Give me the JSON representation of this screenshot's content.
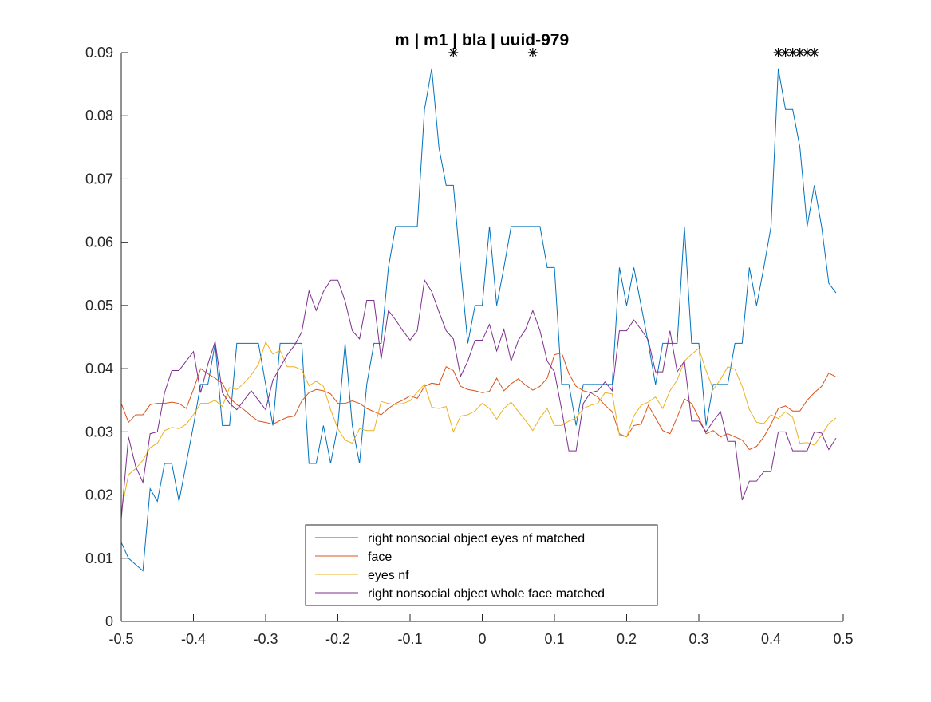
{
  "chart_data": {
    "type": "line",
    "title": "m | m1 | bla | uuid-979",
    "xlabel": "",
    "ylabel": "",
    "xlim": [
      -0.5,
      0.5
    ],
    "ylim": [
      0,
      0.09
    ],
    "grid": false,
    "legend_placement": "bottom-center",
    "x_ticks": [
      -0.5,
      -0.4,
      -0.3,
      -0.2,
      -0.1,
      0,
      0.1,
      0.2,
      0.3,
      0.4,
      0.5
    ],
    "x_tick_labels": [
      "-0.5",
      "-0.4",
      "-0.3",
      "-0.2",
      "-0.1",
      "0",
      "0.1",
      "0.2",
      "0.3",
      "0.4",
      "0.5"
    ],
    "y_ticks": [
      0,
      0.01,
      0.02,
      0.03,
      0.04,
      0.05,
      0.06,
      0.07,
      0.08,
      0.09
    ],
    "y_tick_labels": [
      "0",
      "0.01",
      "0.02",
      "0.03",
      "0.04",
      "0.05",
      "0.06",
      "0.07",
      "0.08",
      "0.09"
    ],
    "x": [
      -0.5,
      -0.49,
      -0.48,
      -0.47,
      -0.46,
      -0.45,
      -0.44,
      -0.43,
      -0.42,
      -0.41,
      -0.4,
      -0.39,
      -0.38,
      -0.37,
      -0.36,
      -0.35,
      -0.34,
      -0.33,
      -0.32,
      -0.31,
      -0.3,
      -0.29,
      -0.28,
      -0.27,
      -0.26,
      -0.25,
      -0.24,
      -0.23,
      -0.22,
      -0.21,
      -0.2,
      -0.19,
      -0.18,
      -0.17,
      -0.16,
      -0.15,
      -0.14,
      -0.13,
      -0.12,
      -0.11,
      -0.1,
      -0.09,
      -0.08,
      -0.07,
      -0.06,
      -0.05,
      -0.04,
      -0.03,
      -0.02,
      -0.01,
      0,
      0.01,
      0.02,
      0.03,
      0.04,
      0.05,
      0.06,
      0.07,
      0.08,
      0.09,
      0.1,
      0.11,
      0.12,
      0.13,
      0.14,
      0.15,
      0.16,
      0.17,
      0.18,
      0.19,
      0.2,
      0.21,
      0.22,
      0.23,
      0.24,
      0.25,
      0.26,
      0.27,
      0.28,
      0.29,
      0.3,
      0.31,
      0.32,
      0.33,
      0.34,
      0.35,
      0.36,
      0.37,
      0.38,
      0.39,
      0.4,
      0.41,
      0.42,
      0.43,
      0.44,
      0.45,
      0.46,
      0.47,
      0.48,
      0.49
    ],
    "series": [
      {
        "name": "right nonsocial object eyes nf matched",
        "color": "#0072BD",
        "values": [
          0.0125,
          0.01,
          0.009,
          0.008,
          0.021,
          0.019,
          0.025,
          0.025,
          0.019,
          0.025,
          0.031,
          0.0375,
          0.0375,
          0.044,
          0.031,
          0.031,
          0.044,
          0.044,
          0.044,
          0.044,
          0.0375,
          0.031,
          0.044,
          0.044,
          0.044,
          0.044,
          0.025,
          0.025,
          0.031,
          0.025,
          0.031,
          0.044,
          0.031,
          0.025,
          0.0375,
          0.044,
          0.044,
          0.056,
          0.0625,
          0.0625,
          0.0625,
          0.0625,
          0.081,
          0.0875,
          0.075,
          0.069,
          0.069,
          0.056,
          0.044,
          0.05,
          0.05,
          0.0625,
          0.05,
          0.056,
          0.0625,
          0.0625,
          0.0625,
          0.0625,
          0.0625,
          0.056,
          0.056,
          0.0375,
          0.0375,
          0.031,
          0.0375,
          0.0375,
          0.0375,
          0.0375,
          0.0375,
          0.056,
          0.05,
          0.056,
          0.05,
          0.044,
          0.0375,
          0.044,
          0.044,
          0.044,
          0.0625,
          0.044,
          0.044,
          0.031,
          0.0375,
          0.0375,
          0.0375,
          0.044,
          0.044,
          0.056,
          0.05,
          0.056,
          0.0625,
          0.0875,
          0.081,
          0.081,
          0.075,
          0.0625,
          0.069,
          0.0625,
          0.0535,
          0.052
        ]
      },
      {
        "name": "face",
        "color": "#D95319",
        "values": [
          0.0345,
          0.0315,
          0.0327,
          0.0327,
          0.0343,
          0.0345,
          0.0345,
          0.0347,
          0.0345,
          0.0337,
          0.0367,
          0.04,
          0.0392,
          0.0385,
          0.0377,
          0.0354,
          0.0343,
          0.0335,
          0.0325,
          0.0317,
          0.0315,
          0.0312,
          0.0318,
          0.0323,
          0.0325,
          0.0349,
          0.0362,
          0.0367,
          0.0365,
          0.036,
          0.0345,
          0.0345,
          0.0349,
          0.0345,
          0.0337,
          0.0332,
          0.0327,
          0.0337,
          0.0345,
          0.035,
          0.0357,
          0.0353,
          0.0372,
          0.0377,
          0.0375,
          0.0403,
          0.0397,
          0.0372,
          0.0367,
          0.0365,
          0.0362,
          0.0364,
          0.0385,
          0.0365,
          0.0376,
          0.0384,
          0.0374,
          0.0366,
          0.0372,
          0.0385,
          0.0422,
          0.0425,
          0.0392,
          0.0372,
          0.0365,
          0.0362,
          0.0355,
          0.0342,
          0.0332,
          0.0297,
          0.0292,
          0.031,
          0.0312,
          0.0342,
          0.0322,
          0.0302,
          0.0297,
          0.0323,
          0.0352,
          0.0345,
          0.0322,
          0.0297,
          0.0302,
          0.0292,
          0.0297,
          0.0292,
          0.0287,
          0.0272,
          0.0277,
          0.0292,
          0.0312,
          0.0337,
          0.0341,
          0.0333,
          0.0333,
          0.035,
          0.0362,
          0.0372,
          0.0393,
          0.0387
        ]
      },
      {
        "name": "eyes nf",
        "color": "#EDB120",
        "values": [
          0.0175,
          0.0232,
          0.0242,
          0.0255,
          0.0275,
          0.0282,
          0.0302,
          0.0307,
          0.0305,
          0.0312,
          0.0327,
          0.0345,
          0.0345,
          0.035,
          0.034,
          0.037,
          0.0367,
          0.0377,
          0.039,
          0.0407,
          0.0442,
          0.0423,
          0.0429,
          0.0403,
          0.0403,
          0.0398,
          0.0373,
          0.038,
          0.0372,
          0.0335,
          0.0305,
          0.0287,
          0.0282,
          0.0305,
          0.0302,
          0.0302,
          0.0348,
          0.0345,
          0.0343,
          0.0345,
          0.0349,
          0.0363,
          0.0375,
          0.0339,
          0.0337,
          0.034,
          0.03,
          0.0325,
          0.0327,
          0.0333,
          0.0345,
          0.0337,
          0.032,
          0.0337,
          0.0347,
          0.0332,
          0.0318,
          0.0302,
          0.0322,
          0.0337,
          0.031,
          0.031,
          0.0317,
          0.0322,
          0.0337,
          0.0342,
          0.0345,
          0.0362,
          0.036,
          0.0295,
          0.0292,
          0.0325,
          0.0342,
          0.0347,
          0.0355,
          0.0337,
          0.0365,
          0.0382,
          0.0412,
          0.0423,
          0.0432,
          0.0397,
          0.0367,
          0.0383,
          0.0403,
          0.0399,
          0.0372,
          0.0335,
          0.0315,
          0.0313,
          0.0327,
          0.0321,
          0.0332,
          0.0323,
          0.0282,
          0.0283,
          0.0279,
          0.0295,
          0.0313,
          0.0322
        ]
      },
      {
        "name": "right nonsocial object whole face matched",
        "color": "#7E2F8E",
        "values": [
          0.0162,
          0.0292,
          0.0245,
          0.022,
          0.0297,
          0.03,
          0.0362,
          0.0397,
          0.0397,
          0.0412,
          0.0427,
          0.0362,
          0.0407,
          0.0443,
          0.0362,
          0.0345,
          0.0335,
          0.035,
          0.0365,
          0.035,
          0.0335,
          0.0382,
          0.0402,
          0.0422,
          0.0437,
          0.0458,
          0.0523,
          0.0492,
          0.0522,
          0.054,
          0.054,
          0.0507,
          0.046,
          0.0447,
          0.0508,
          0.0508,
          0.0415,
          0.0492,
          0.0477,
          0.046,
          0.0445,
          0.046,
          0.054,
          0.0522,
          0.049,
          0.046,
          0.0447,
          0.0388,
          0.0412,
          0.0445,
          0.0445,
          0.047,
          0.0428,
          0.0462,
          0.0412,
          0.0445,
          0.0462,
          0.0492,
          0.046,
          0.0412,
          0.0395,
          0.0335,
          0.027,
          0.027,
          0.0345,
          0.0362,
          0.0365,
          0.0379,
          0.0365,
          0.046,
          0.046,
          0.0477,
          0.0462,
          0.0445,
          0.0395,
          0.0395,
          0.046,
          0.0395,
          0.0412,
          0.0317,
          0.0317,
          0.03,
          0.0317,
          0.0332,
          0.0285,
          0.0285,
          0.0192,
          0.0222,
          0.0222,
          0.0237,
          0.0237,
          0.03,
          0.03,
          0.027,
          0.027,
          0.027,
          0.03,
          0.0298,
          0.0272,
          0.029
        ]
      }
    ],
    "markers": {
      "symbol": "asterisk",
      "y": 0.09,
      "x": [
        -0.04,
        0.07,
        0.41,
        0.42,
        0.43,
        0.44,
        0.45,
        0.46
      ]
    }
  }
}
